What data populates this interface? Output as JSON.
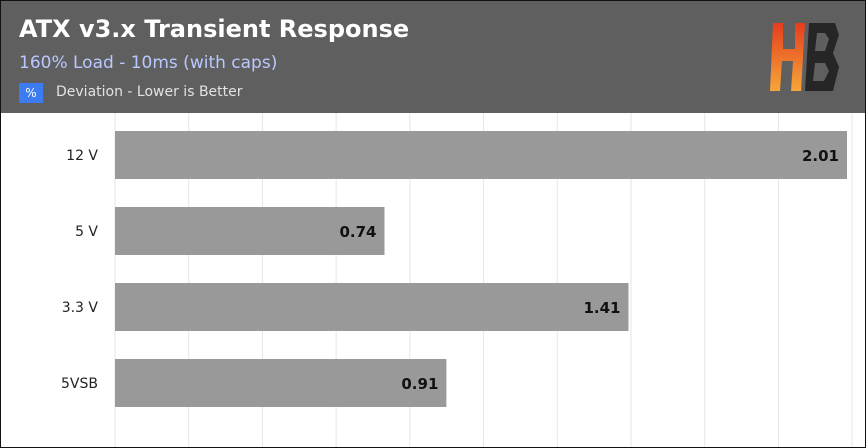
{
  "header": {
    "title": "ATX v3.x Transient Response",
    "subtitle": "160% Load - 10ms (with caps)",
    "unit_symbol": "%",
    "unit_description": "Deviation - Lower is Better"
  },
  "colors": {
    "header_bg": "#5f5f5f",
    "bar": "#999999",
    "grid": "#e6e6e6",
    "badge": "#3d7cf0",
    "logo_top": "#e53d1c",
    "logo_bottom": "#f6a63a"
  },
  "logo": {
    "icon": "hb-logo-icon",
    "text": "HB"
  },
  "chart_data": {
    "type": "bar",
    "orientation": "horizontal",
    "title": "ATX v3.x Transient Response",
    "subtitle": "160% Load - 10ms (with caps)",
    "unit": "%",
    "categories": [
      "12 V",
      "5 V",
      "3.3 V",
      "5VSB"
    ],
    "values": [
      2.01,
      0.74,
      1.41,
      0.91
    ],
    "value_labels": [
      "2.01",
      "0.74",
      "1.41",
      "0.91"
    ],
    "xlim": [
      0,
      2.01
    ],
    "grid": true,
    "legend": "none"
  }
}
